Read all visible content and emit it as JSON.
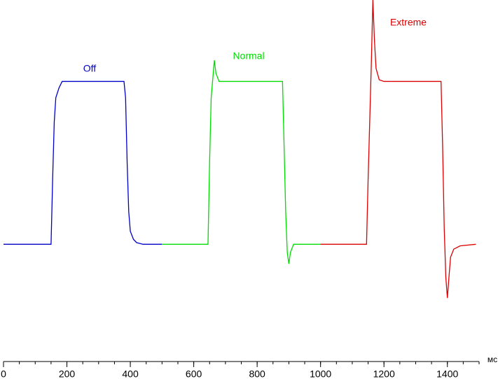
{
  "chart_data": {
    "type": "line",
    "xlabel": "мс",
    "xlim": [
      0,
      1500
    ],
    "ylim": [
      -72,
      150
    ],
    "xticks": [
      0,
      200,
      400,
      600,
      800,
      1000,
      1200,
      1400
    ],
    "xminorticks": [
      0,
      50,
      100,
      150,
      200,
      250,
      300,
      350,
      400,
      450,
      500,
      550,
      600,
      650,
      700,
      750,
      800,
      850,
      900,
      950,
      1000,
      1050,
      1100,
      1150,
      1200,
      1250,
      1300,
      1350,
      1400,
      1450,
      1500
    ],
    "series": [
      {
        "name": "Off",
        "color": "#0000c8",
        "x": [
          0,
          150,
          155,
          160,
          165,
          175,
          185,
          380,
          385,
          390,
          395,
          400,
          410,
          420,
          440,
          500
        ],
        "values": [
          0,
          0,
          40,
          75,
          90,
          96,
          100,
          100,
          90,
          50,
          20,
          8,
          3,
          1,
          0,
          0
        ]
      },
      {
        "name": "Normal",
        "color": "#00dc00",
        "x": [
          500,
          645,
          650,
          655,
          665,
          670,
          680,
          880,
          885,
          890,
          895,
          900,
          905,
          915,
          1000
        ],
        "values": [
          0,
          0,
          50,
          90,
          113,
          105,
          100,
          100,
          60,
          20,
          -5,
          -12,
          -5,
          0,
          0
        ]
      },
      {
        "name": "Extreme",
        "color": "#dc0000",
        "x": [
          1000,
          1145,
          1150,
          1160,
          1165,
          1170,
          1175,
          1185,
          1200,
          1380,
          1385,
          1390,
          1395,
          1400,
          1405,
          1410,
          1420,
          1440,
          1490
        ],
        "values": [
          0,
          0,
          40,
          110,
          150,
          125,
          108,
          101,
          100,
          100,
          60,
          10,
          -20,
          -33,
          -20,
          -8,
          -3,
          -1,
          0
        ]
      }
    ]
  }
}
